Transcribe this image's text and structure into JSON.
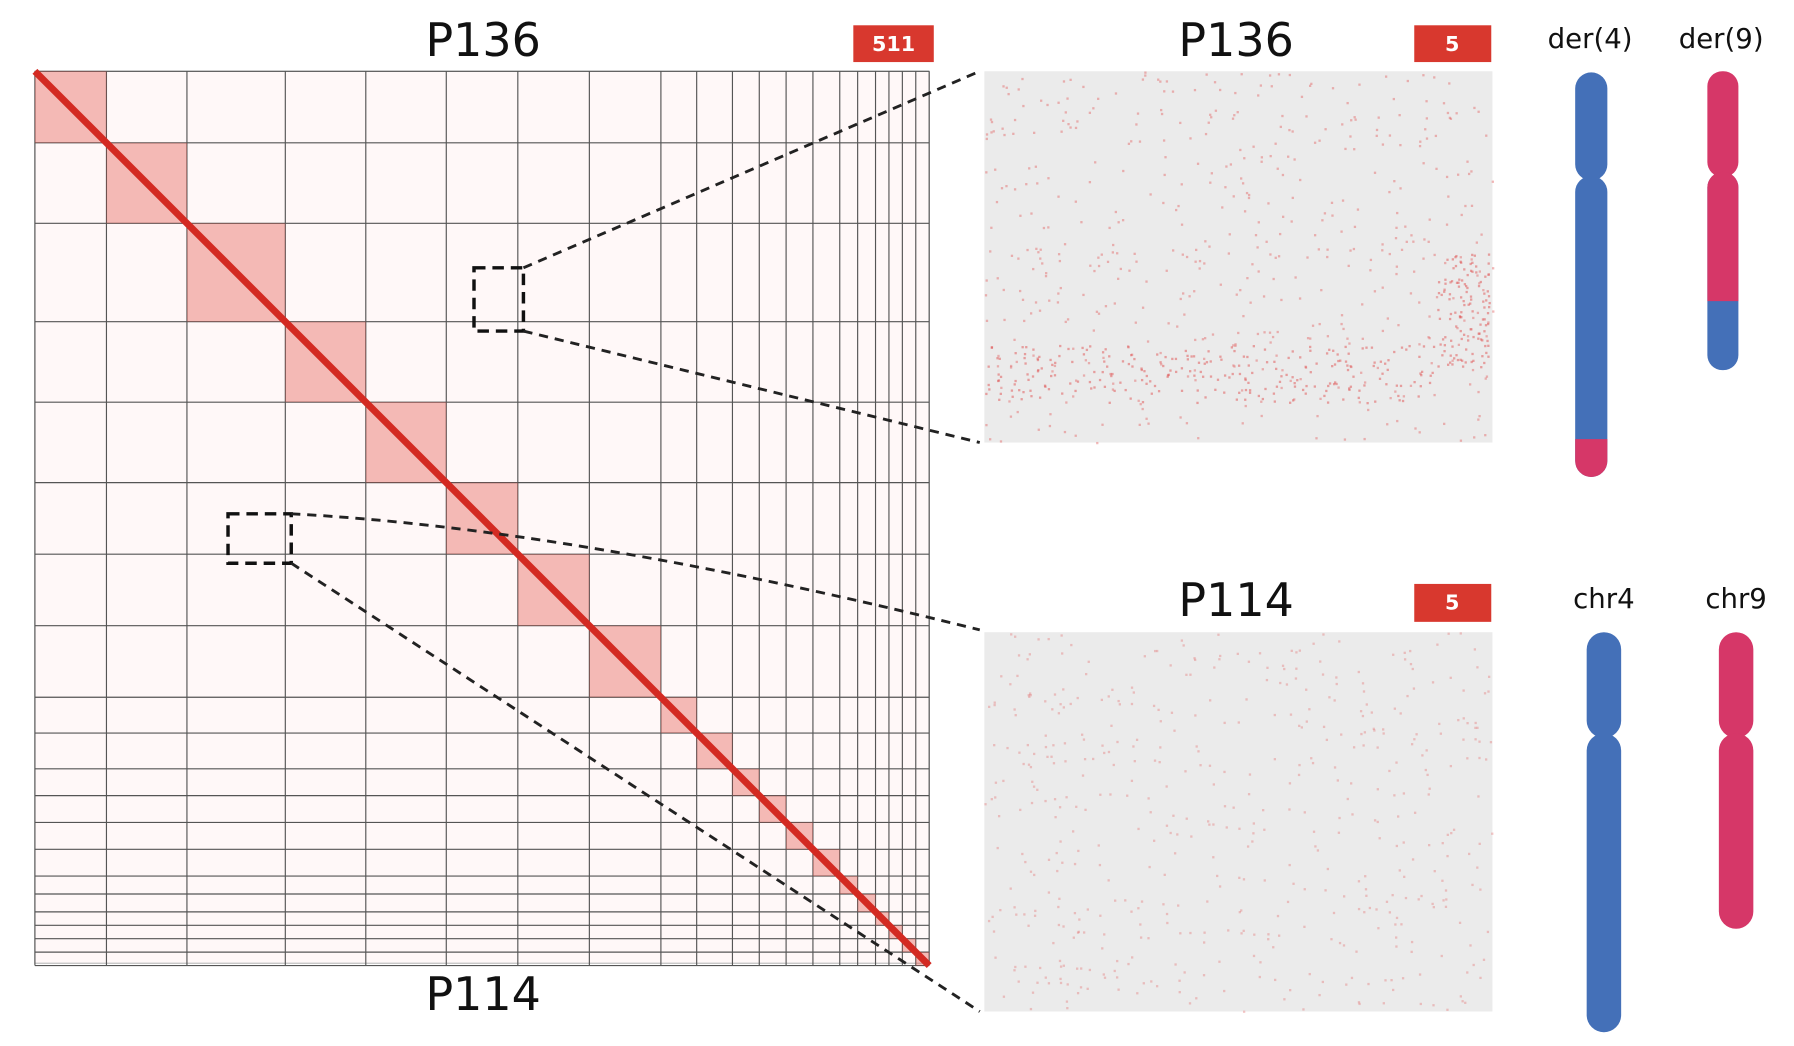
{
  "left_panel": {
    "title_top": "P136",
    "title_bottom": "P114",
    "badge": 511
  },
  "zoom_top": {
    "title": "P136",
    "badge": 5
  },
  "zoom_bottom": {
    "title": "P114",
    "badge": 5
  },
  "chromosomes_top": {
    "labels": [
      "der(4)",
      "der(9)"
    ]
  },
  "chromosomes_bottom": {
    "labels": [
      "chr4",
      "chr9"
    ]
  }
}
